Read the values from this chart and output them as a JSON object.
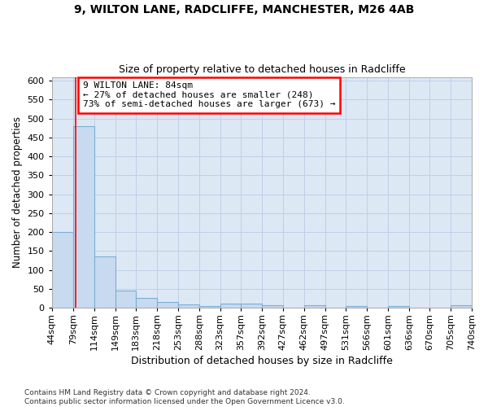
{
  "title_line1": "9, WILTON LANE, RADCLIFFE, MANCHESTER, M26 4AB",
  "title_line2": "Size of property relative to detached houses in Radcliffe",
  "xlabel": "Distribution of detached houses by size in Radcliffe",
  "ylabel": "Number of detached properties",
  "footnote": "Contains HM Land Registry data © Crown copyright and database right 2024.\nContains public sector information licensed under the Open Government Licence v3.0.",
  "bin_edges": [
    44,
    79,
    114,
    149,
    183,
    218,
    253,
    288,
    323,
    357,
    392,
    427,
    462,
    497,
    531,
    566,
    601,
    636,
    670,
    705,
    740
  ],
  "bin_labels": [
    "44sqm",
    "79sqm",
    "114sqm",
    "149sqm",
    "183sqm",
    "218sqm",
    "253sqm",
    "288sqm",
    "323sqm",
    "357sqm",
    "392sqm",
    "427sqm",
    "462sqm",
    "497sqm",
    "531sqm",
    "566sqm",
    "601sqm",
    "636sqm",
    "670sqm",
    "705sqm",
    "740sqm"
  ],
  "bin_values": [
    200,
    480,
    135,
    46,
    25,
    14,
    8,
    5,
    11,
    10,
    6,
    0,
    6,
    0,
    5,
    0,
    5,
    0,
    0,
    6,
    0
  ],
  "bar_facecolor": "#c8daf0",
  "bar_edgecolor": "#7aafd4",
  "plot_bg_color": "#dde8f5",
  "figure_bg_color": "#ffffff",
  "grid_color": "#c0cfe8",
  "red_line_x": 84,
  "annotation_text": "9 WILTON LANE: 84sqm\n← 27% of detached houses are smaller (248)\n73% of semi-detached houses are larger (673) →",
  "annotation_box_fc": "white",
  "annotation_box_ec": "red",
  "ylim": [
    0,
    610
  ],
  "yticks": [
    0,
    50,
    100,
    150,
    200,
    250,
    300,
    350,
    400,
    450,
    500,
    550,
    600
  ]
}
